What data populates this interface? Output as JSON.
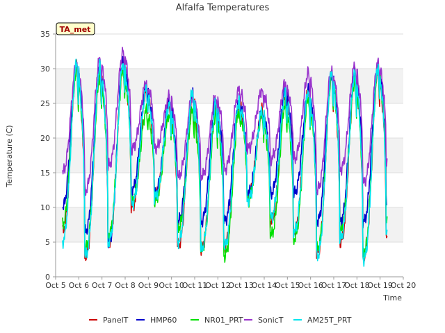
{
  "chart_data": {
    "type": "line",
    "title": "Alfalfa Temperatures",
    "xlabel": "Time",
    "ylabel": "Temperature (C)",
    "badge": "TA_met",
    "xlim": [
      5,
      20
    ],
    "ylim": [
      0,
      35
    ],
    "x_ticks": [
      {
        "v": 5,
        "label": "Oct 5"
      },
      {
        "v": 6,
        "label": "Oct 6"
      },
      {
        "v": 7,
        "label": "Oct 7"
      },
      {
        "v": 8,
        "label": "Oct 8"
      },
      {
        "v": 9,
        "label": "Oct 9"
      },
      {
        "v": 10,
        "label": "Oct 10"
      },
      {
        "v": 11,
        "label": "Oct 11"
      },
      {
        "v": 12,
        "label": "Oct 12"
      },
      {
        "v": 13,
        "label": "Oct 13"
      },
      {
        "v": 14,
        "label": "Oct 14"
      },
      {
        "v": 15,
        "label": "Oct 15"
      },
      {
        "v": 16,
        "label": "Oct 16"
      },
      {
        "v": 17,
        "label": "Oct 17"
      },
      {
        "v": 18,
        "label": "Oct 18"
      },
      {
        "v": 19,
        "label": "Oct 19"
      },
      {
        "v": 20,
        "label": "Oct 20"
      }
    ],
    "y_ticks": [
      0,
      5,
      10,
      15,
      20,
      25,
      30,
      35
    ],
    "grid": true,
    "legend_position": "bottom",
    "daily_extremes": {
      "days": [
        5.3,
        6.0,
        7.0,
        8.0,
        9.0,
        10.0,
        11.0,
        12.0,
        13.0,
        14.0,
        15.0,
        16.0,
        17.0,
        18.0,
        19.0
      ],
      "PanelT": {
        "min": [
          6.5,
          3.0,
          5.0,
          10.0,
          11.5,
          4.5,
          4.0,
          4.5,
          11.5,
          8.0,
          6.5,
          3.5,
          5.0,
          3.0,
          6.0
        ],
        "max": [
          null,
          30.5,
          30.0,
          31.0,
          27.0,
          25.0,
          26.5,
          25.0,
          25.0,
          24.0,
          26.5,
          27.0,
          29.5,
          29.0,
          30.0
        ]
      },
      "HMP60": {
        "min": [
          10.0,
          6.5,
          5.0,
          12.5,
          12.0,
          8.0,
          8.0,
          8.0,
          12.0,
          12.0,
          12.0,
          8.0,
          8.0,
          8.0,
          11.0
        ],
        "max": [
          null,
          31.0,
          30.0,
          31.5,
          27.5,
          25.5,
          26.5,
          25.5,
          25.5,
          24.0,
          27.0,
          27.0,
          29.5,
          29.5,
          30.5
        ]
      },
      "NR01_PRT": {
        "min": [
          7.5,
          4.0,
          6.0,
          11.0,
          11.0,
          7.0,
          4.0,
          3.0,
          11.0,
          6.0,
          5.5,
          4.0,
          6.5,
          3.5,
          8.0
        ],
        "max": [
          null,
          30.0,
          29.0,
          30.0,
          24.0,
          23.5,
          24.0,
          23.5,
          24.0,
          23.5,
          25.0,
          26.0,
          29.0,
          28.5,
          30.0
        ]
      },
      "SonicT": {
        "min": [
          15.0,
          12.5,
          16.0,
          18.5,
          18.5,
          14.5,
          14.5,
          15.5,
          18.5,
          17.0,
          17.0,
          12.5,
          15.5,
          13.5,
          17.0
        ],
        "max": [
          null,
          31.0,
          31.5,
          32.5,
          28.0,
          26.0,
          26.0,
          26.0,
          27.0,
          27.0,
          28.0,
          29.5,
          30.0,
          30.5,
          31.0
        ]
      },
      "AM25T_PRT": {
        "min": [
          5.0,
          3.0,
          5.0,
          10.5,
          11.5,
          5.0,
          4.0,
          4.5,
          11.0,
          8.5,
          6.5,
          3.0,
          5.5,
          2.5,
          6.0
        ],
        "max": [
          null,
          31.0,
          30.5,
          31.0,
          27.0,
          25.0,
          27.0,
          25.0,
          25.5,
          24.0,
          26.5,
          27.0,
          29.5,
          29.5,
          30.5
        ]
      }
    },
    "series": [
      {
        "name": "PanelT",
        "color": "#cc0000"
      },
      {
        "name": "HMP60",
        "color": "#0000cc"
      },
      {
        "name": "NR01_PRT",
        "color": "#00e000"
      },
      {
        "name": "SonicT",
        "color": "#9933cc"
      },
      {
        "name": "AM25T_PRT",
        "color": "#00e5ee"
      }
    ]
  }
}
